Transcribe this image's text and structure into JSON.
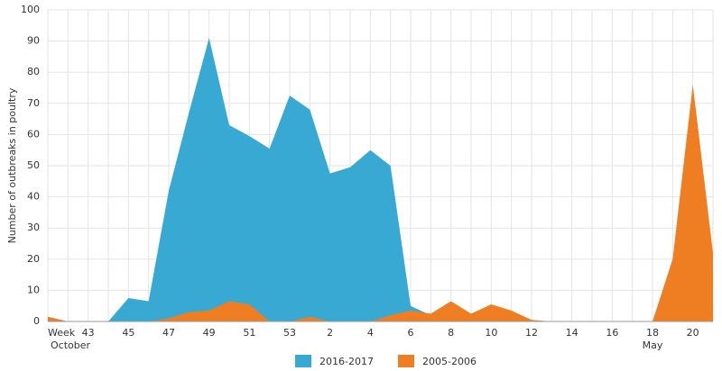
{
  "chart_data": {
    "type": "area",
    "y_label": "Number of outbreaks in poultry",
    "categories": [
      "Week",
      null,
      "43",
      null,
      "45",
      null,
      "47",
      null,
      "49",
      null,
      "51",
      null,
      "53",
      null,
      "2",
      null,
      "4",
      null,
      "6",
      null,
      "8",
      null,
      "10",
      null,
      "12",
      null,
      "14",
      null,
      "16",
      null,
      "18",
      null,
      "20",
      null
    ],
    "annotations": [
      "October",
      "May"
    ],
    "series": [
      {
        "name": "2016-2017",
        "color": "#38a9d3",
        "values": [
          0,
          0,
          0,
          0,
          7.5,
          6.5,
          42,
          67,
          91,
          63,
          59.5,
          55.5,
          72.5,
          68,
          47.5,
          49.5,
          55,
          50,
          5,
          2,
          0,
          0,
          0,
          0,
          0,
          0,
          0,
          0,
          0,
          0,
          0,
          0,
          0,
          0
        ]
      },
      {
        "name": "2005-2006",
        "color": "#ef7d22",
        "values": [
          1.5,
          0,
          0,
          0,
          0,
          0,
          1,
          3,
          3.5,
          6.5,
          5.5,
          0,
          0,
          1.5,
          0,
          0,
          0,
          2,
          3.5,
          2.5,
          6.5,
          2.5,
          5.5,
          3.5,
          0.5,
          0,
          0,
          0,
          0,
          0,
          0,
          20,
          76,
          22
        ]
      }
    ],
    "ylim": [
      0,
      100
    ],
    "yticks": [
      0,
      10,
      20,
      30,
      40,
      50,
      60,
      70,
      80,
      90,
      100
    ],
    "grid": true
  }
}
